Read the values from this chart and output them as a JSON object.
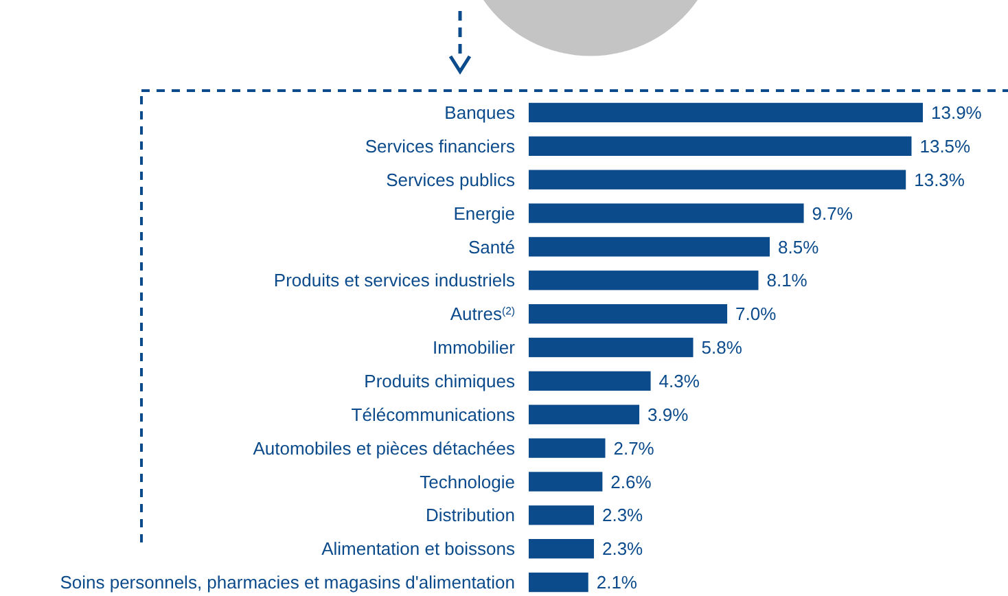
{
  "chart_data": {
    "type": "bar",
    "orientation": "horizontal",
    "categories": [
      "Banques",
      "Services financiers",
      "Services publics",
      "Energie",
      "Santé",
      "Produits et services industriels",
      "Autres$^{(2)}$",
      "Immobilier",
      "Produits chimiques",
      "Télécommunications",
      "Automobiles et pièces détachées",
      "Technologie",
      "Distribution",
      "Alimentation et boissons",
      "Soins personnels, pharmacies et magasins d'alimentation"
    ],
    "values": [
      13.9,
      13.5,
      13.3,
      9.7,
      8.5,
      8.1,
      7.0,
      5.8,
      4.3,
      3.9,
      2.7,
      2.6,
      2.3,
      2.3,
      2.1
    ],
    "value_labels": [
      "13.9%",
      "13.5%",
      "13.3%",
      "9.7%",
      "8.5%",
      "8.1%",
      "7.0%",
      "5.8%",
      "4.3%",
      "3.9%",
      "2.7%",
      "2.6%",
      "2.3%",
      "2.3%",
      "2.1%"
    ],
    "color": "#0b4a8b"
  }
}
